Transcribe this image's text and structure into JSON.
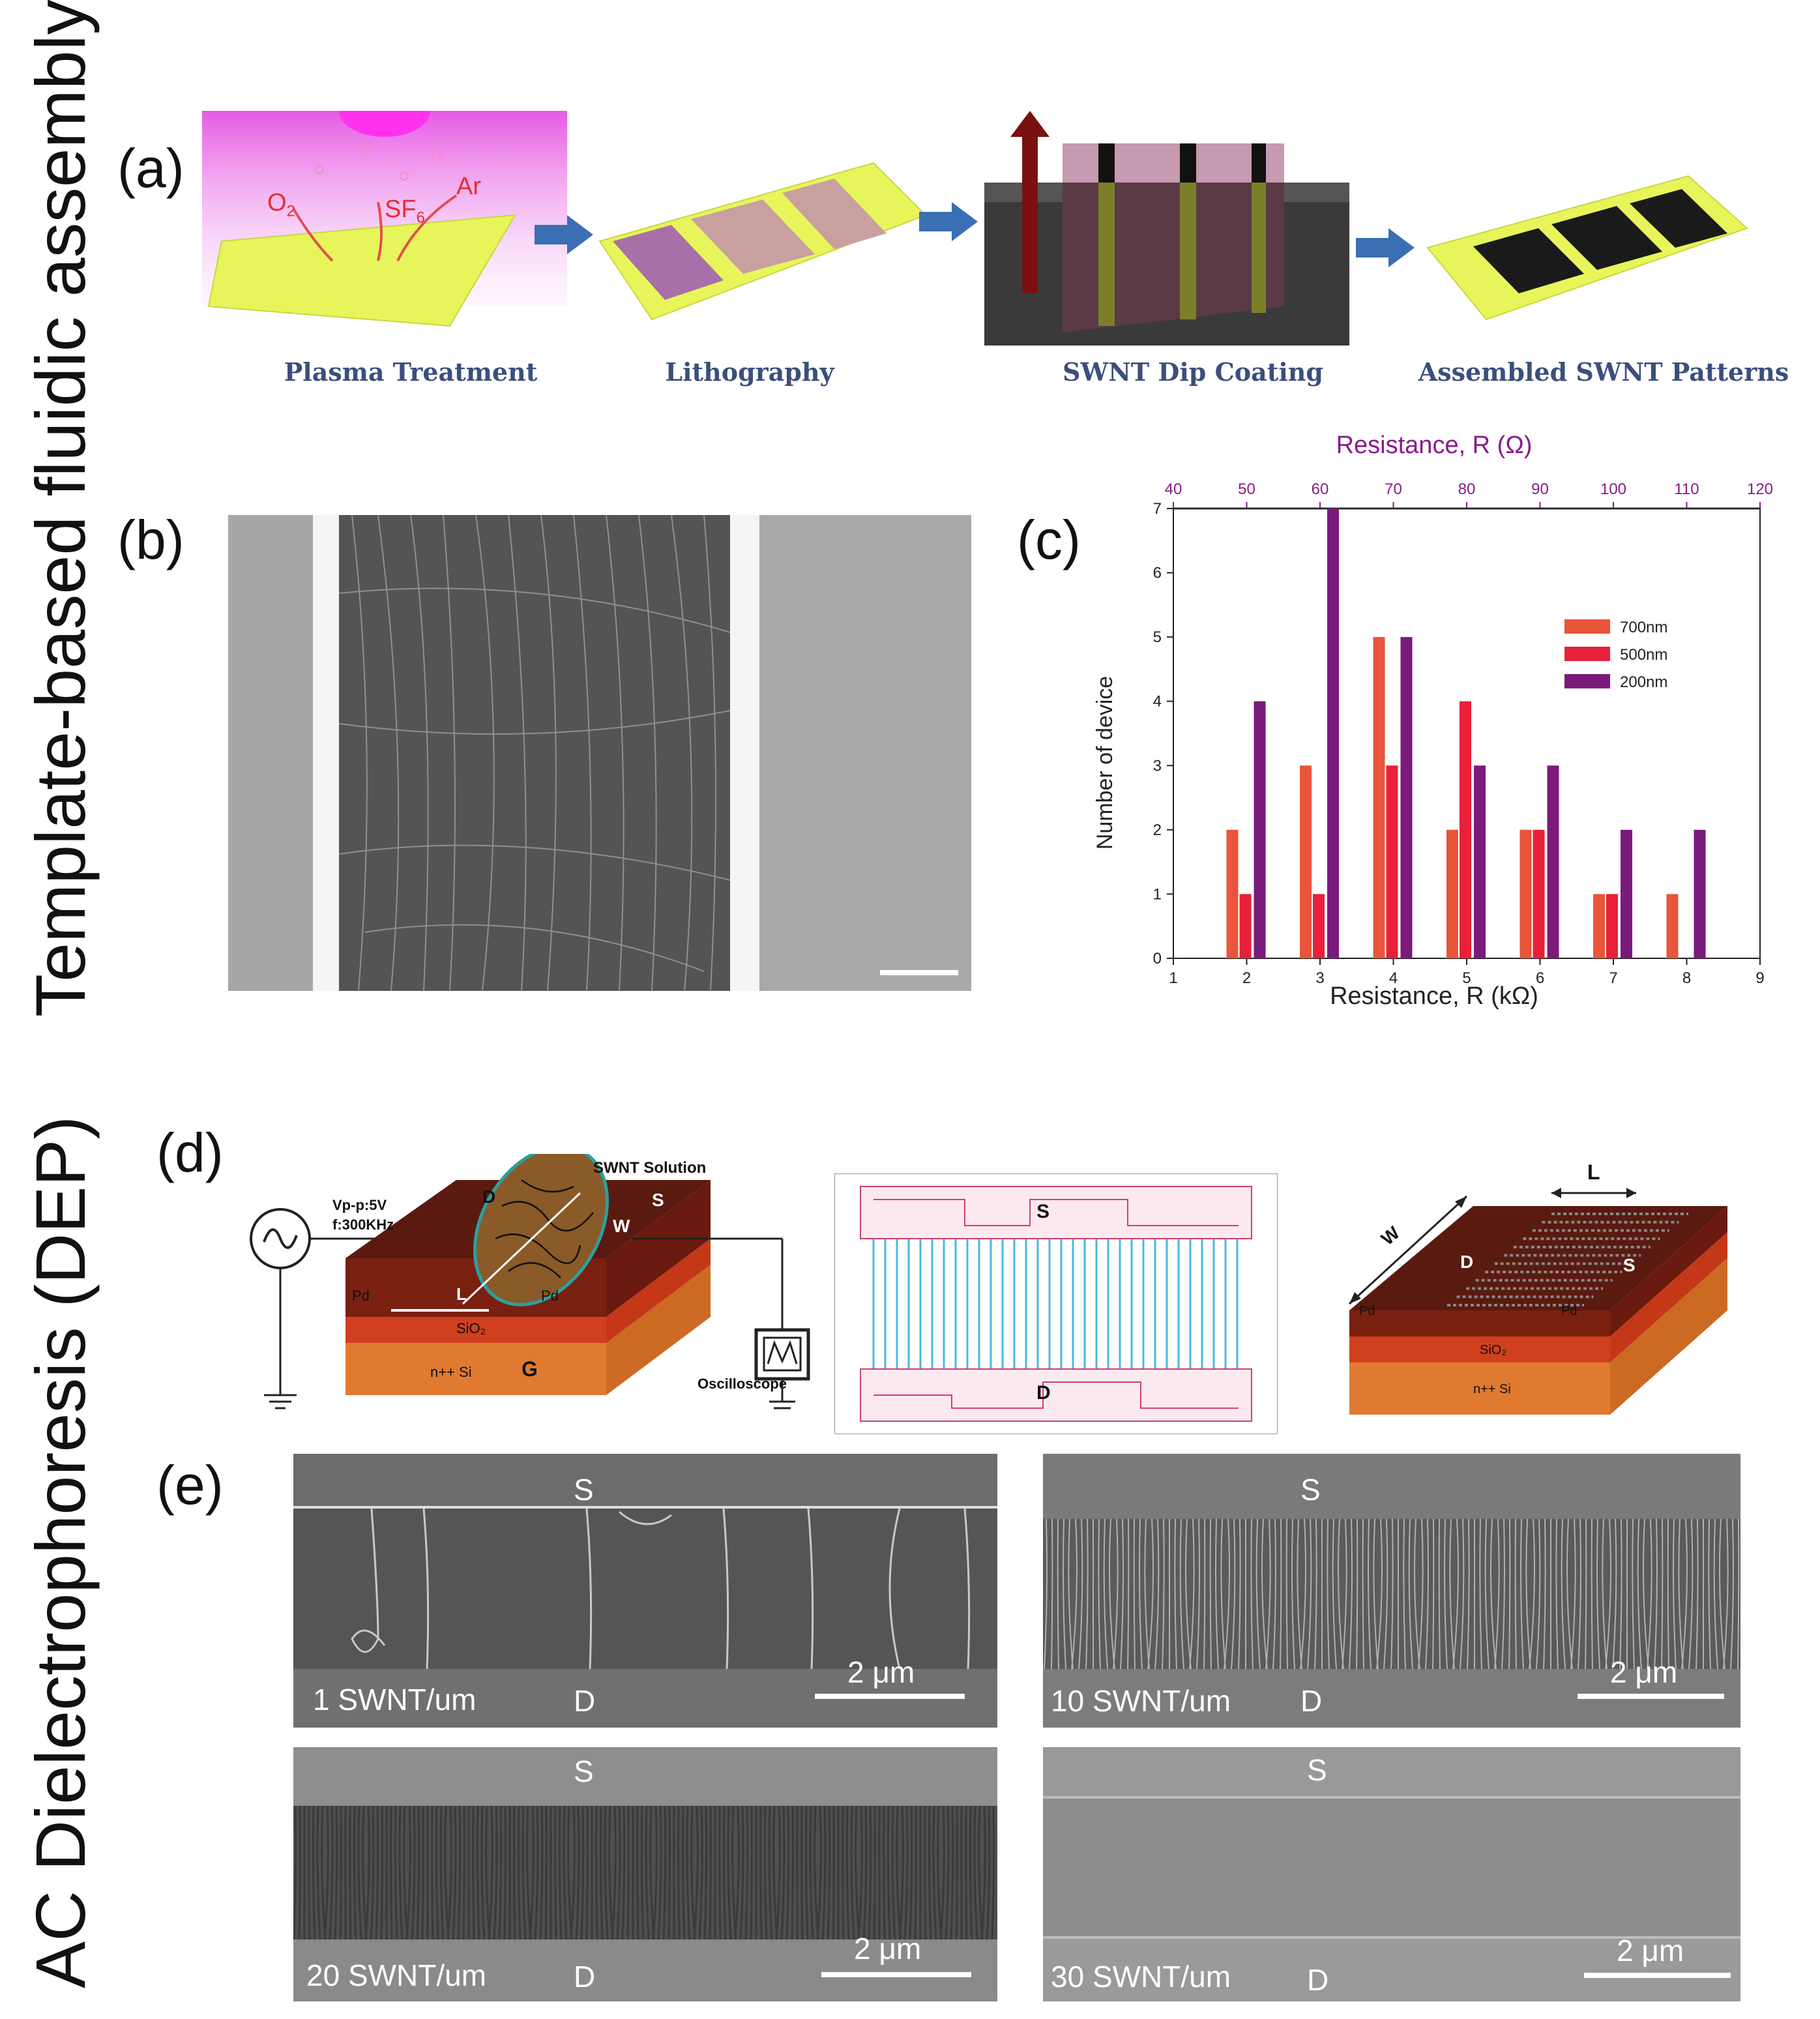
{
  "side_labels": {
    "top": "Template-based fluidic assembly",
    "bottom": "AC Dielectrophoresis (DEP)"
  },
  "panels": {
    "a": "(a)",
    "b": "(b)",
    "c": "(c)",
    "d": "(d)",
    "e": "(e)"
  },
  "panel_a": {
    "steps": [
      "Plasma Treatment",
      "Lithography",
      "SWNT Dip Coating",
      "Assembled SWNT Patterns"
    ],
    "gas_labels": {
      "o2": "O",
      "o2_sub": "2",
      "sf6": "SF",
      "sf6_sub": "6",
      "ar": "Ar"
    },
    "colors": {
      "substrate": "#e8f55a",
      "plasma": "#e23de0",
      "resist": "#b98a8a",
      "swnt": "#1a1a1a",
      "arrow": "#3b6fb4"
    }
  },
  "panel_d": {
    "source": {
      "vpp": "Vp-p:5V",
      "freq": "f:300KHz"
    },
    "labels": {
      "swnt_solution": "SWNT Solution",
      "d": "D",
      "s": "S",
      "w": "W",
      "l": "L",
      "pd_left": "Pd",
      "pd_right": "Pd",
      "sio2": "SiO₂",
      "si": "n++ Si",
      "g": "G",
      "oscilloscope": "Oscilloscope"
    },
    "sim_labels": {
      "s": "S",
      "d": "D"
    }
  },
  "panel_e": {
    "images": [
      {
        "label": "1 SWNT/um",
        "s": "S",
        "d": "D",
        "scale": "2 μm"
      },
      {
        "label": "10 SWNT/um",
        "s": "S",
        "d": "D",
        "scale": "2 μm"
      },
      {
        "label": "20 SWNT/um",
        "s": "S",
        "d": "D",
        "scale": "2 μm"
      },
      {
        "label": "30 SWNT/um",
        "s": "S",
        "d": "D",
        "scale": "2 μm"
      }
    ]
  },
  "chart_data": {
    "type": "bar",
    "xlabel": "Resistance, R (kΩ)",
    "ylabel": "Number of device",
    "top_xlabel": "Resistance, R (Ω)",
    "xlim": [
      1,
      9
    ],
    "ylim": [
      0,
      7
    ],
    "top_xlim": [
      40,
      120
    ],
    "x_ticks": [
      1,
      2,
      3,
      4,
      5,
      6,
      7,
      8,
      9
    ],
    "y_ticks": [
      0,
      1,
      2,
      3,
      4,
      5,
      6,
      7
    ],
    "top_ticks": [
      40,
      50,
      60,
      70,
      80,
      90,
      100,
      110,
      120
    ],
    "categories": [
      2,
      3,
      4,
      5,
      6,
      7,
      8
    ],
    "series": [
      {
        "name": "700nm",
        "color": "#e8553a",
        "values": [
          2,
          3,
          5,
          2,
          2,
          1,
          1
        ]
      },
      {
        "name": "500nm",
        "color": "#e8203a",
        "values": [
          1,
          1,
          3,
          4,
          2,
          1,
          0
        ]
      },
      {
        "name": "200nm",
        "color": "#7a1a7a",
        "values": [
          4,
          7,
          5,
          3,
          3,
          2,
          2
        ]
      }
    ],
    "legend": "top-right",
    "grid": false
  }
}
